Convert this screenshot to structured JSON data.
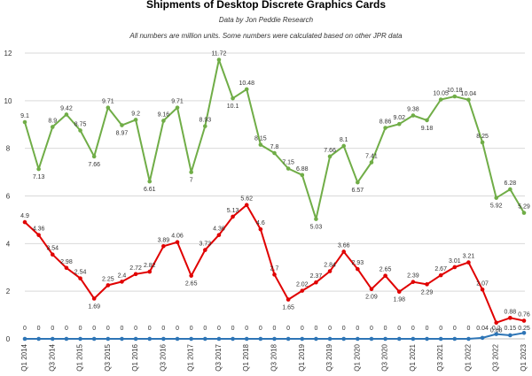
{
  "chart_data": {
    "type": "line",
    "title": "Shipments of Desktop Discrete Graphics Cards",
    "subtitle": "Data by Jon Peddie Research",
    "note": "All numbers are million units. Some numbers were calculated based on other JPR data",
    "ylim": [
      0,
      12
    ],
    "yticks": [
      0,
      2,
      4,
      6,
      8,
      10,
      12
    ],
    "grid": true,
    "categories": [
      "Q1 2014",
      "Q2 2014",
      "Q3 2014",
      "Q4 2014",
      "Q1 2015",
      "Q2 2015",
      "Q3 2015",
      "Q4 2015",
      "Q1 2016",
      "Q2 2016",
      "Q3 2016",
      "Q4 2016",
      "Q1 2017",
      "Q2 2017",
      "Q3 2017",
      "Q4 2017",
      "Q1 2018",
      "Q2 2018",
      "Q3 2018",
      "Q4 2018",
      "Q1 2019",
      "Q2 2019",
      "Q3 2019",
      "Q4 2019",
      "Q1 2020",
      "Q2 2020",
      "Q3 2020",
      "Q4 2020",
      "Q1 2021",
      "Q2 2021",
      "Q3 2021",
      "Q4 2021",
      "Q1 2022",
      "Q2 2022",
      "Q3 2022",
      "Q4 2022",
      "Q1 2023"
    ],
    "tick_labels": [
      "Q1 2014",
      "",
      "Q3 2014",
      "",
      "Q1 2015",
      "",
      "Q3 2015",
      "",
      "Q1 2016",
      "",
      "Q3 2016",
      "",
      "Q1 2017",
      "",
      "Q3 2017",
      "",
      "Q1 2018",
      "",
      "Q3 2018",
      "",
      "Q1 2019",
      "",
      "Q3 2019",
      "",
      "Q1 2020",
      "",
      "Q3 2020",
      "",
      "Q1 2021",
      "",
      "Q3 2021",
      "",
      "Q1 2022",
      "",
      "Q3 2022",
      "",
      "Q1 2023"
    ],
    "series": [
      {
        "color": "#70ad47",
        "values": [
          9.1,
          7.13,
          8.9,
          9.42,
          8.75,
          7.66,
          9.71,
          8.97,
          9.2,
          6.61,
          9.16,
          9.71,
          7,
          8.93,
          11.72,
          10.1,
          10.48,
          8.15,
          7.8,
          7.15,
          6.88,
          5.03,
          7.66,
          8.1,
          6.57,
          7.41,
          8.86,
          9.02,
          9.38,
          9.18,
          10.05,
          10.18,
          10.04,
          8.25,
          5.92,
          6.28,
          5.29
        ]
      },
      {
        "color": "#e00000",
        "values": [
          4.9,
          4.36,
          3.54,
          2.98,
          2.54,
          1.69,
          2.25,
          2.4,
          2.72,
          2.82,
          3.89,
          4.06,
          2.65,
          3.73,
          4.36,
          5.13,
          5.62,
          4.6,
          2.7,
          1.65,
          2.02,
          2.37,
          2.84,
          3.66,
          2.93,
          2.09,
          2.65,
          1.98,
          2.39,
          2.29,
          2.67,
          3.01,
          3.21,
          2.07,
          0.68,
          0.88,
          0.76
        ]
      },
      {
        "color": "#2e75b6",
        "values": [
          0,
          0,
          0,
          0,
          0,
          0,
          0,
          0,
          0,
          0,
          0,
          0,
          0,
          0,
          0,
          0,
          0,
          0,
          0,
          0,
          0,
          0,
          0,
          0,
          0,
          0,
          0,
          0,
          0,
          0,
          0,
          0,
          0,
          0.04,
          0.2,
          0.15,
          0.25
        ]
      }
    ],
    "data_labels": [
      [
        "9.1",
        "7.13",
        "8.9",
        "9.42",
        "8.75",
        "7.66",
        "9.71",
        "8.97",
        "9.2",
        "6.61",
        "9.16",
        "9.71",
        "7",
        "8.93",
        "11.72",
        "10.1",
        "10.48",
        "8.15",
        "7.8",
        "7.15",
        "6.88",
        "5.03",
        "7.66",
        "8.1",
        "6.57",
        "7.41",
        "8.86",
        "9.02",
        "9.38",
        "9.18",
        "10.05",
        "10.18",
        "10.04",
        "8.25",
        "5.92",
        "6.28",
        "5.29"
      ],
      [
        "4.9",
        "4.36",
        "3.54",
        "2.98",
        "2.54",
        "1.69",
        "2.25",
        "2.4",
        "2.72",
        "2.82",
        "3.89",
        "4.06",
        "2.65",
        "3.73",
        "4.36",
        "5.13",
        "5.62",
        "4.6",
        "2.7",
        "1.65",
        "2.02",
        "2.37",
        "2.84",
        "3.66",
        "2.93",
        "2.09",
        "2.65",
        "1.98",
        "2.39",
        "2.29",
        "2.67",
        "3.01",
        "3.21",
        "2.07",
        "0.68",
        "0.88",
        "0.76"
      ],
      [
        "0",
        "0",
        "0",
        "0",
        "0",
        "0",
        "0",
        "0",
        "0",
        "0",
        "0",
        "0",
        "0",
        "0",
        "0",
        "0",
        "0",
        "0",
        "0",
        "0",
        "0",
        "0",
        "0",
        "0",
        "0",
        "0",
        "0",
        "0",
        "0",
        "0",
        "0",
        "0",
        "0",
        "0.04",
        "0.2",
        "0.15",
        "0.25"
      ]
    ]
  }
}
